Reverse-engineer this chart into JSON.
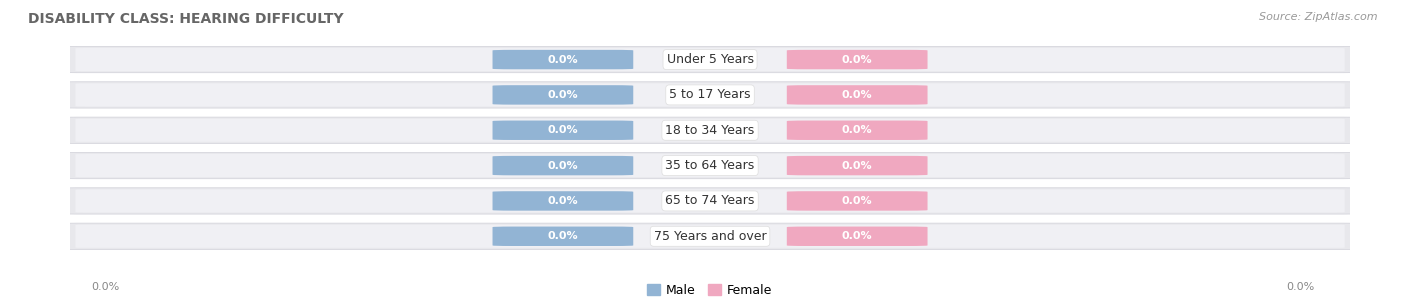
{
  "title": "DISABILITY CLASS: HEARING DIFFICULTY",
  "source": "Source: ZipAtlas.com",
  "categories": [
    "Under 5 Years",
    "5 to 17 Years",
    "18 to 34 Years",
    "35 to 64 Years",
    "65 to 74 Years",
    "75 Years and over"
  ],
  "male_values": [
    0.0,
    0.0,
    0.0,
    0.0,
    0.0,
    0.0
  ],
  "female_values": [
    0.0,
    0.0,
    0.0,
    0.0,
    0.0,
    0.0
  ],
  "male_color": "#92b4d4",
  "female_color": "#f0a8c0",
  "row_bg_color": "#e8e8ec",
  "row_inner_color": "#f0f0f4",
  "title_fontsize": 10,
  "source_fontsize": 8,
  "label_fontsize": 8,
  "category_fontsize": 9,
  "axis_label_left": "0.0%",
  "axis_label_right": "0.0%",
  "legend_male": "Male",
  "legend_female": "Female"
}
